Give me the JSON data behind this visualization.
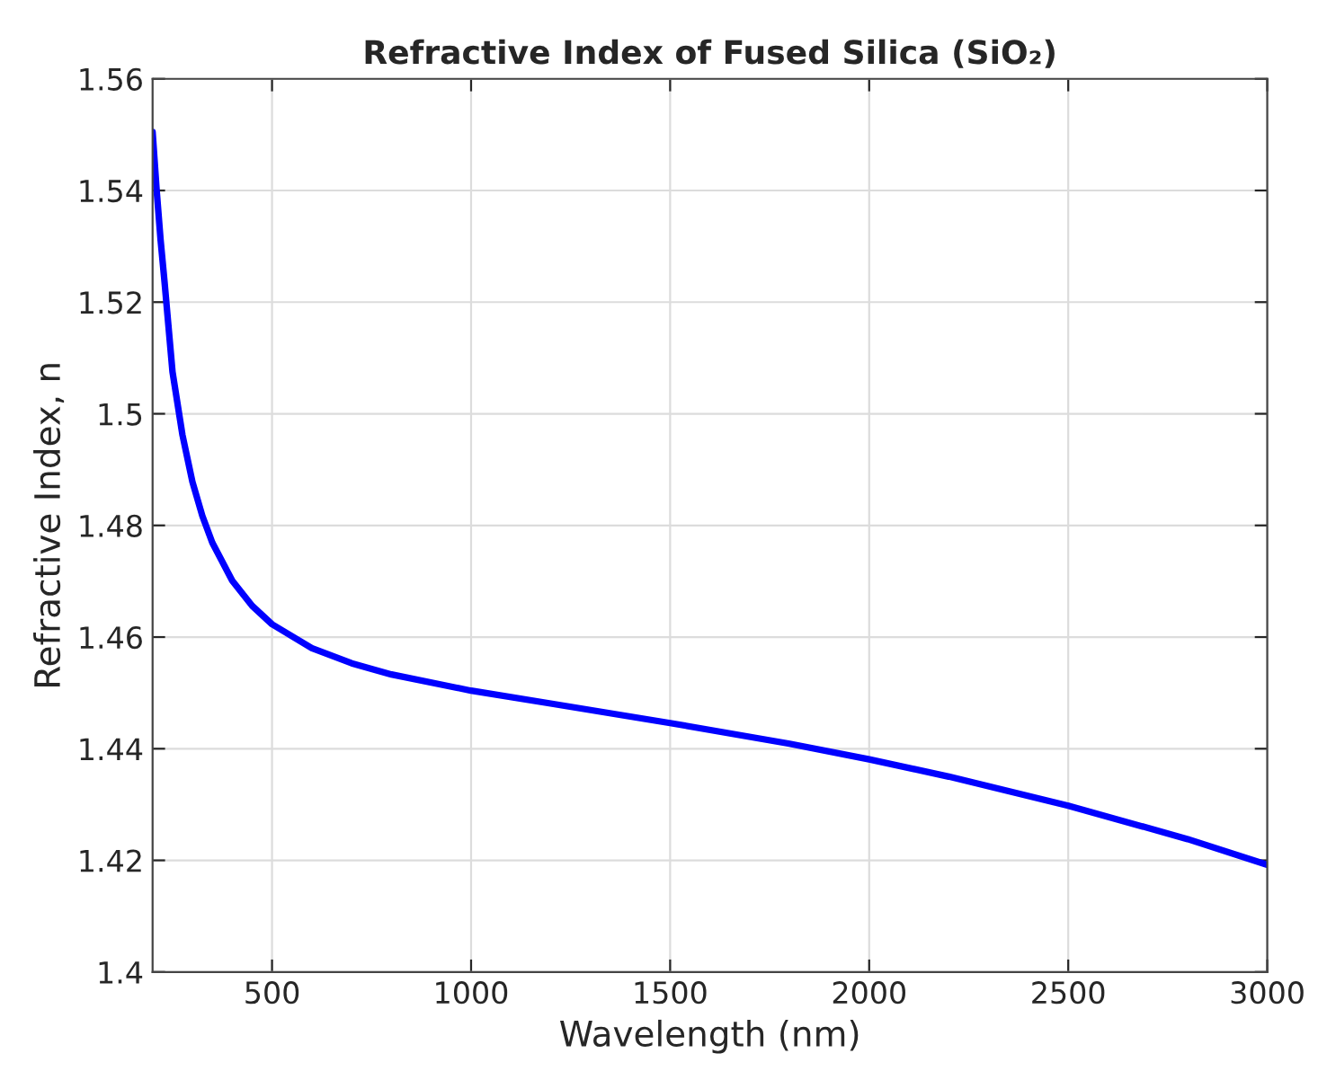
{
  "chart_data": {
    "type": "line",
    "title": "Refractive Index of Fused Silica (SiO₂)",
    "xlabel": "Wavelength (nm)",
    "ylabel": "Refractive Index, n",
    "series": [
      {
        "color": "#0000ff",
        "x": [
          200,
          210,
          220,
          230,
          250,
          275,
          300,
          325,
          350,
          400,
          450,
          500,
          600,
          700,
          800,
          1000,
          1200,
          1500,
          1800,
          2000,
          2200,
          2500,
          2800,
          3000
        ],
        "values": [
          1.5505,
          1.5402,
          1.5312,
          1.5236,
          1.5075,
          1.4962,
          1.4878,
          1.4817,
          1.4769,
          1.4701,
          1.4656,
          1.4623,
          1.458,
          1.4553,
          1.4533,
          1.4504,
          1.4481,
          1.4446,
          1.4409,
          1.4381,
          1.435,
          1.4298,
          1.4238,
          1.4192
        ]
      }
    ],
    "xlim": [
      200,
      3000
    ],
    "xticks": [
      500,
      1000,
      1500,
      2000,
      2500,
      3000
    ],
    "ylim": [
      1.4,
      1.56
    ],
    "yticks": [
      {
        "value": 1.4,
        "label": "1.4"
      },
      {
        "value": 1.42,
        "label": "1.42"
      },
      {
        "value": 1.44,
        "label": "1.44"
      },
      {
        "value": 1.46,
        "label": "1.46"
      },
      {
        "value": 1.48,
        "label": "1.48"
      },
      {
        "value": 1.5,
        "label": "1.5"
      },
      {
        "value": 1.52,
        "label": "1.52"
      },
      {
        "value": 1.54,
        "label": "1.54"
      },
      {
        "value": 1.56,
        "label": "1.56"
      }
    ],
    "grid": true,
    "marker": "none",
    "line_style": "solid"
  }
}
